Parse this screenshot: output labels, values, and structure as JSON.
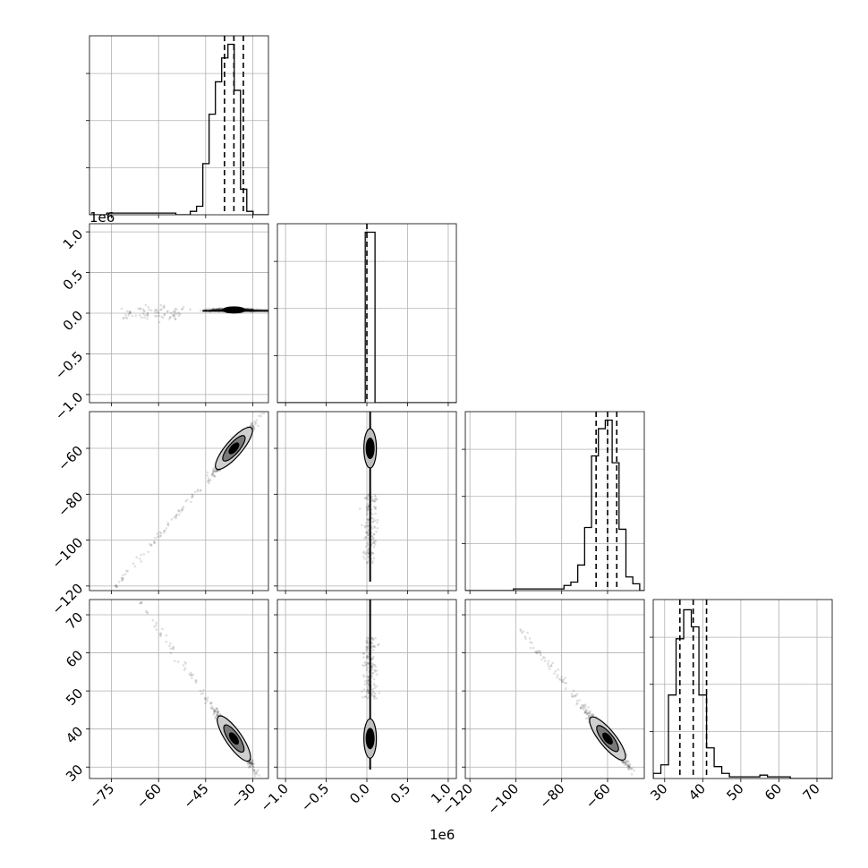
{
  "chart_data": {
    "type": "scatter",
    "subtype": "corner",
    "n_params": 4,
    "labels": [],
    "grid": true,
    "params": [
      {
        "range": [
          -82,
          -25
        ],
        "ticks": [
          -75,
          -60,
          -45,
          -30
        ],
        "tick_labels": [
          "−75",
          "−60",
          "−45",
          "−30"
        ],
        "quantiles": [
          -39,
          -36,
          -33
        ],
        "offset_text": ""
      },
      {
        "range": [
          -1100000.0,
          1100000.0
        ],
        "ticks": [
          -1000000.0,
          -500000.0,
          0,
          500000.0,
          1000000.0
        ],
        "tick_labels": [
          "−1.0",
          "−0.5",
          "0.0",
          "0.5",
          "1.0"
        ],
        "quantiles": [
          0
        ],
        "offset_text": "1e6"
      },
      {
        "range": [
          -122,
          -44
        ],
        "ticks": [
          -120,
          -100,
          -80,
          -60
        ],
        "tick_labels": [
          "−120",
          "−100",
          "−80",
          "−60"
        ],
        "quantiles": [
          -65,
          -60,
          -56
        ],
        "offset_text": ""
      },
      {
        "range": [
          27,
          74
        ],
        "ticks": [
          30,
          40,
          50,
          60,
          70
        ],
        "tick_labels": [
          "30",
          "40",
          "50",
          "60",
          "70"
        ],
        "quantiles": [
          34,
          37.5,
          41
        ],
        "offset_text": ""
      }
    ],
    "histograms": [
      {
        "edges": [
          -82,
          -76.5,
          -71,
          -65.5,
          -60,
          -54.5,
          -49.9,
          -47.9,
          -45.9,
          -43.9,
          -41.9,
          -39.9,
          -37.9,
          -35.9,
          -33.9,
          -31.9,
          -29.9,
          -27.9,
          -25
        ],
        "counts": [
          0,
          0.01,
          0.01,
          0.01,
          0.01,
          0,
          0.02,
          0.05,
          0.3,
          0.59,
          0.78,
          0.92,
          1.0,
          0.73,
          0.15,
          0.02,
          0,
          0
        ]
      },
      {
        "edges": [
          -1100000.0,
          -100000.0,
          -20000.0,
          100000.0,
          1100000.0
        ],
        "counts": [
          0,
          0,
          1.0,
          0
        ]
      },
      {
        "edges": [
          -122,
          -115,
          -108,
          -101,
          -94,
          -87,
          -82,
          -79,
          -76,
          -73,
          -70,
          -67,
          -64,
          -61,
          -58,
          -55,
          -52,
          -49,
          -46,
          -44
        ],
        "counts": [
          0,
          0,
          0,
          0.01,
          0.01,
          0.01,
          0.01,
          0.03,
          0.05,
          0.15,
          0.37,
          0.79,
          0.95,
          1.0,
          0.75,
          0.36,
          0.08,
          0.04,
          0
        ]
      },
      {
        "edges": [
          27,
          29,
          31,
          33,
          35,
          37,
          39,
          41,
          43,
          45,
          47,
          49,
          51,
          53,
          55,
          57,
          59,
          61,
          63,
          74
        ],
        "counts": [
          0.03,
          0.08,
          0.49,
          0.82,
          0.99,
          0.89,
          0.49,
          0.18,
          0.07,
          0.03,
          0.01,
          0.01,
          0.01,
          0.01,
          0.02,
          0.01,
          0.01,
          0.01,
          0
        ]
      }
    ],
    "correlations": {
      "p2_vs_p1": {
        "slope": 1.6,
        "center": [
          -36,
          -60
        ],
        "spread": 2.5
      },
      "p3_vs_p1": {
        "slope": -1.2,
        "center": [
          -36,
          37.5
        ],
        "spread": 1.5
      },
      "p3_vs_p2": {
        "slope": -0.75,
        "center": [
          -60,
          37.5
        ],
        "spread": 1.5
      },
      "p1_vs_p0_center": [
        -36,
        40000.0
      ]
    }
  }
}
